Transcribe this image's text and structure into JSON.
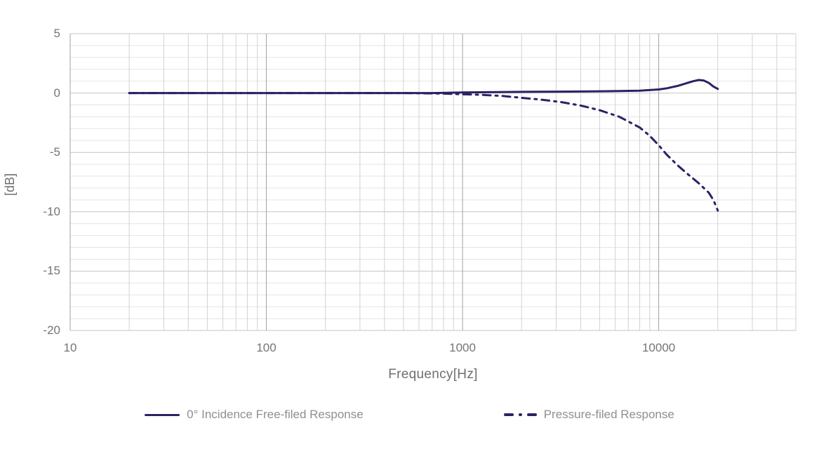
{
  "chart_data": {
    "type": "line",
    "title": "",
    "xlabel": "Frequency[Hz]",
    "ylabel": "[dB]",
    "x_scale": "log",
    "x_range": [
      10,
      50000
    ],
    "y_range": [
      -20,
      5
    ],
    "x_ticks": [
      "10",
      "100",
      "1000",
      "10000"
    ],
    "x_tick_values": [
      10,
      100,
      1000,
      10000
    ],
    "y_ticks": [
      "5",
      "0",
      "-5",
      "-10",
      "-15",
      "-20"
    ],
    "y_tick_values": [
      5,
      0,
      -5,
      -10,
      -15,
      -20
    ],
    "y_minor_step": 1,
    "grid": "major+minor",
    "legend_position": "bottom-center",
    "series": [
      {
        "name": "0° Incidence Free-filed Response",
        "line_style": "solid",
        "color": "#2b2264",
        "points": [
          [
            20,
            0
          ],
          [
            30,
            0
          ],
          [
            50,
            0
          ],
          [
            80,
            0
          ],
          [
            100,
            0
          ],
          [
            150,
            0
          ],
          [
            200,
            0
          ],
          [
            300,
            0
          ],
          [
            500,
            0
          ],
          [
            700,
            0
          ],
          [
            1000,
            0.05
          ],
          [
            1500,
            0.08
          ],
          [
            2000,
            0.1
          ],
          [
            3000,
            0.12
          ],
          [
            4000,
            0.13
          ],
          [
            5000,
            0.15
          ],
          [
            6300,
            0.17
          ],
          [
            8000,
            0.2
          ],
          [
            10000,
            0.3
          ],
          [
            11000,
            0.4
          ],
          [
            12500,
            0.6
          ],
          [
            14000,
            0.85
          ],
          [
            15000,
            1.0
          ],
          [
            16000,
            1.1
          ],
          [
            17000,
            1.05
          ],
          [
            18000,
            0.85
          ],
          [
            19000,
            0.55
          ],
          [
            20000,
            0.35
          ]
        ]
      },
      {
        "name": "Pressure-filed Response",
        "line_style": "dash-dot",
        "color": "#2b2264",
        "points": [
          [
            20,
            0
          ],
          [
            50,
            0
          ],
          [
            100,
            0
          ],
          [
            200,
            0
          ],
          [
            500,
            0
          ],
          [
            800,
            -0.05
          ],
          [
            1000,
            -0.1
          ],
          [
            1250,
            -0.15
          ],
          [
            1600,
            -0.25
          ],
          [
            2000,
            -0.4
          ],
          [
            2500,
            -0.55
          ],
          [
            3150,
            -0.75
          ],
          [
            4000,
            -1.05
          ],
          [
            5000,
            -1.45
          ],
          [
            6300,
            -2.0
          ],
          [
            8000,
            -2.9
          ],
          [
            9000,
            -3.6
          ],
          [
            10000,
            -4.4
          ],
          [
            11000,
            -5.2
          ],
          [
            12500,
            -6.1
          ],
          [
            14000,
            -6.8
          ],
          [
            16000,
            -7.6
          ],
          [
            18000,
            -8.4
          ],
          [
            19000,
            -9.0
          ],
          [
            20000,
            -9.9
          ]
        ]
      }
    ]
  },
  "colors": {
    "background": "#ffffff",
    "line": "#2b2264",
    "grid_minor": "#e4e4e4",
    "grid_major": "#c4c4c4",
    "grid_decade": "#a3a3a3",
    "grid_x_minor": "#d2d2d2",
    "axis_text": "#757575",
    "legend_text": "#8f8f8f"
  }
}
